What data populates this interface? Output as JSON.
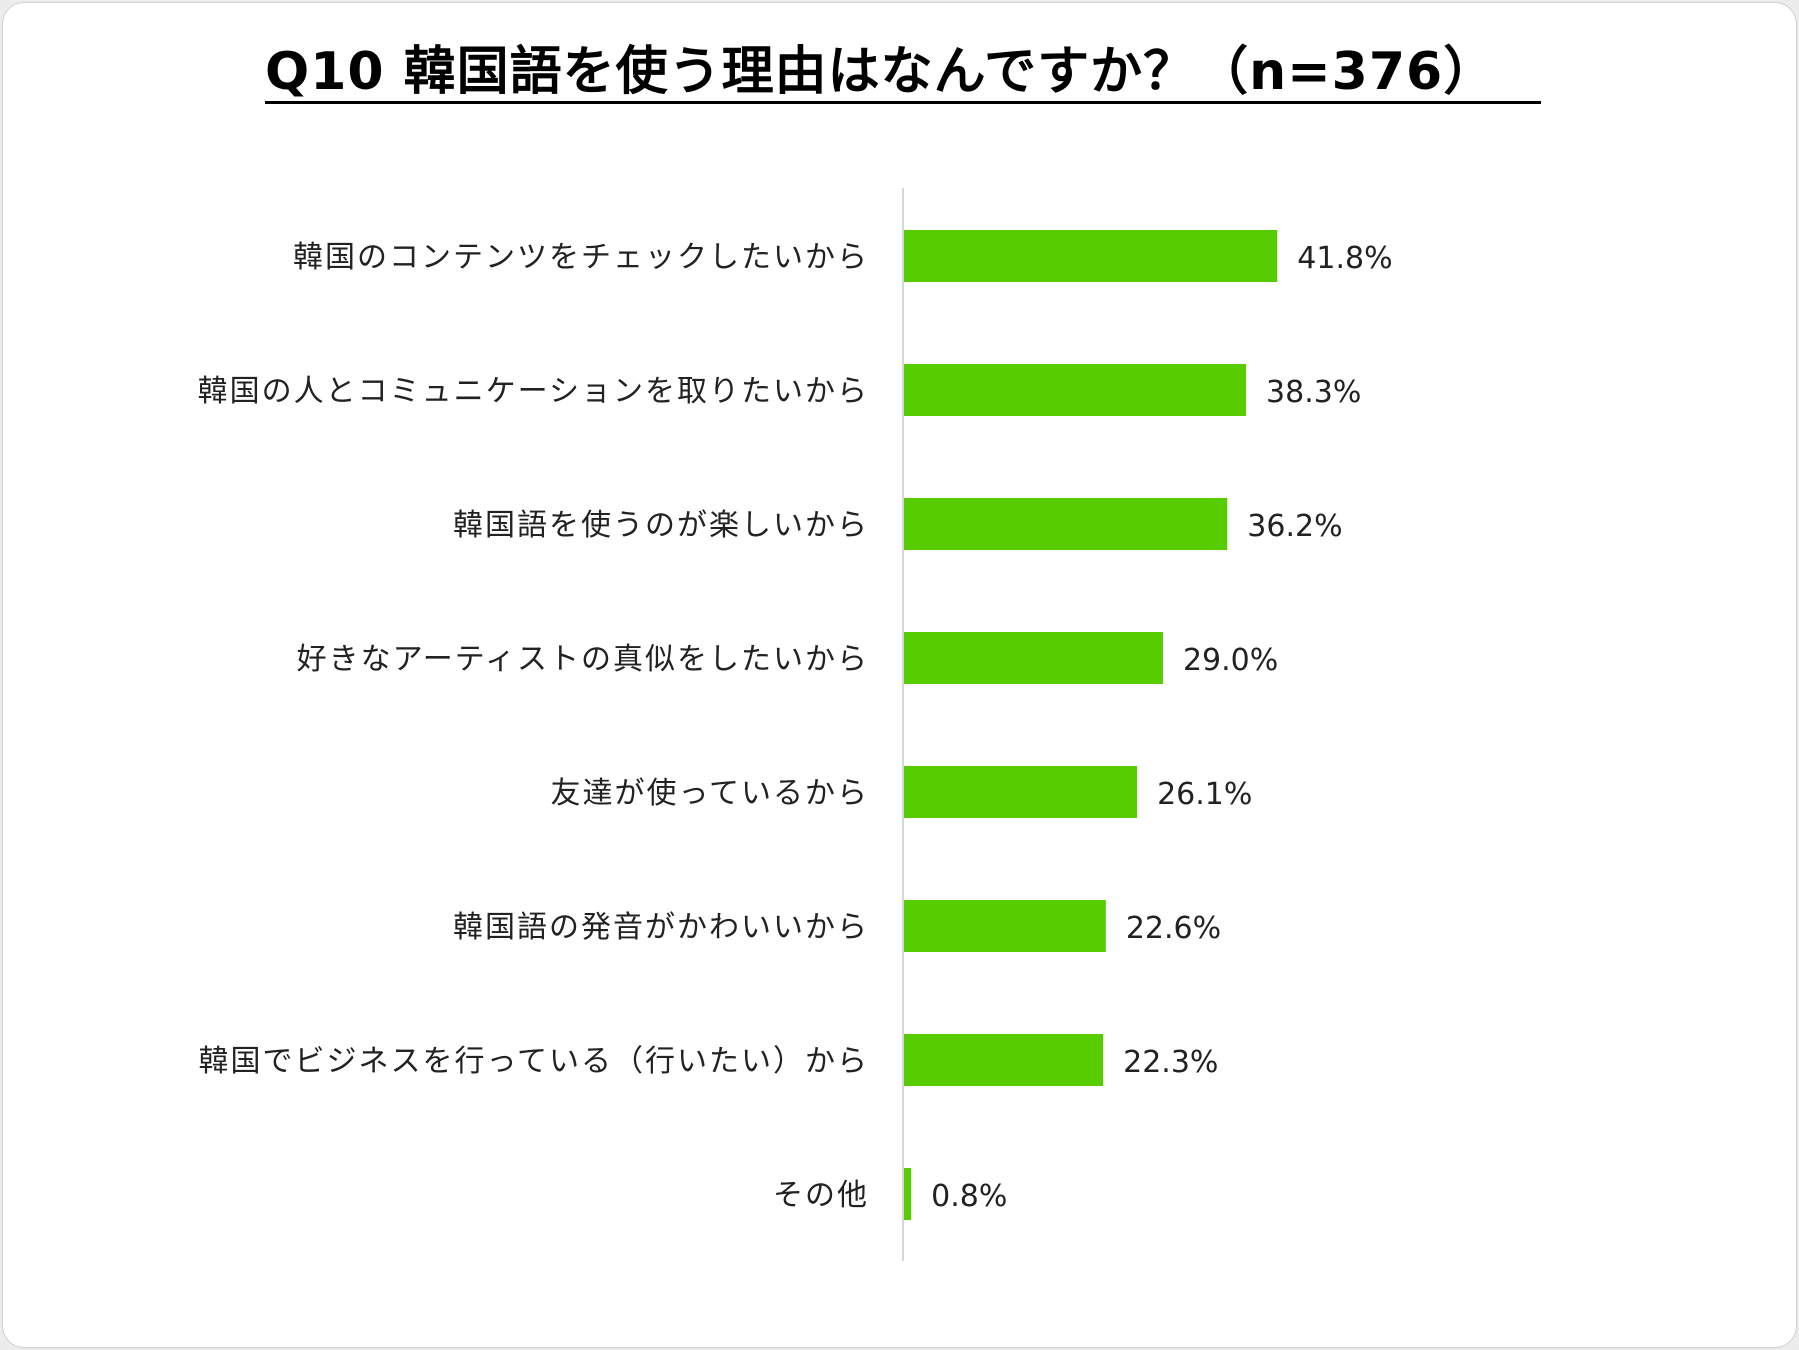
{
  "chart_data": {
    "type": "bar",
    "orientation": "horizontal",
    "title": "Q10 韓国語を使う理由はなんですか？（n=376）",
    "categories": [
      "韓国のコンテンツをチェックしたいから",
      "韓国の人とコミュニケーションを取りたいから",
      "韓国語を使うのが楽しいから",
      "好きなアーティストの真似をしたいから",
      "友達が使っているから",
      "韓国語の発音がかわいいから",
      "韓国でビジネスを行っている（行いたい）から",
      "その他"
    ],
    "values": [
      41.8,
      38.3,
      36.2,
      29.0,
      26.1,
      22.6,
      22.3,
      0.8
    ],
    "value_labels": [
      "41.8%",
      "38.3%",
      "36.2%",
      "29.0%",
      "26.1%",
      "22.6%",
      "22.3%",
      "0.8%"
    ],
    "unit": "%",
    "xlim": [
      0,
      100
    ],
    "grid": false,
    "legend": "none",
    "bar_color": "#57cc00"
  }
}
